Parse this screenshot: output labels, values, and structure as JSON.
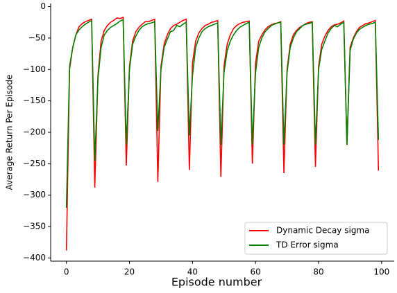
{
  "chart_data": {
    "type": "line",
    "xlabel": "Episode number",
    "ylabel": "Average Return Per Episode",
    "x": [
      0,
      1,
      2,
      3,
      4,
      5,
      6,
      7,
      8,
      9,
      10,
      11,
      12,
      13,
      14,
      15,
      16,
      17,
      18,
      19,
      20,
      21,
      22,
      23,
      24,
      25,
      26,
      27,
      28,
      29,
      30,
      31,
      32,
      33,
      34,
      35,
      36,
      37,
      38,
      39,
      40,
      41,
      42,
      43,
      44,
      45,
      46,
      47,
      48,
      49,
      50,
      51,
      52,
      53,
      54,
      55,
      56,
      57,
      58,
      59,
      60,
      61,
      62,
      63,
      64,
      65,
      66,
      67,
      68,
      69,
      70,
      71,
      72,
      73,
      74,
      75,
      76,
      77,
      78,
      79,
      80,
      81,
      82,
      83,
      84,
      85,
      86,
      87,
      88,
      89,
      90,
      91,
      92,
      93,
      94,
      95,
      96,
      97,
      98,
      99
    ],
    "series": [
      {
        "name": "Dynamic Decay sigma",
        "color": "#ff0000",
        "values": [
          -388,
          -100,
          -65,
          -45,
          -32,
          -27,
          -24,
          -22,
          -20,
          -288,
          -110,
          -55,
          -38,
          -30,
          -25,
          -22,
          -18,
          -19,
          -17,
          -253,
          -95,
          -55,
          -40,
          -33,
          -28,
          -24,
          -24,
          -22,
          -20,
          -279,
          -95,
          -60,
          -45,
          -35,
          -30,
          -28,
          -25,
          -22,
          -20,
          -260,
          -90,
          -55,
          -42,
          -35,
          -30,
          -28,
          -25,
          -24,
          -22,
          -271,
          -95,
          -60,
          -45,
          -35,
          -30,
          -27,
          -25,
          -24,
          -23,
          -250,
          -90,
          -55,
          -45,
          -37,
          -32,
          -29,
          -27,
          -26,
          -24,
          -265,
          -100,
          -60,
          -45,
          -38,
          -33,
          -30,
          -27,
          -25,
          -24,
          -255,
          -95,
          -60,
          -47,
          -38,
          -32,
          -29,
          -28,
          -26,
          -23,
          -220,
          -65,
          -50,
          -40,
          -33,
          -30,
          -27,
          -26,
          -24,
          -22,
          -261
        ]
      },
      {
        "name": "TD Error sigma",
        "color": "#008000",
        "values": [
          -320,
          -95,
          -65,
          -45,
          -37,
          -32,
          -28,
          -25,
          -22,
          -245,
          -115,
          -65,
          -45,
          -38,
          -33,
          -30,
          -27,
          -23,
          -21,
          -220,
          -100,
          -60,
          -47,
          -38,
          -32,
          -29,
          -27,
          -26,
          -24,
          -198,
          -100,
          -65,
          -52,
          -40,
          -38,
          -30,
          -32,
          -28,
          -25,
          -205,
          -110,
          -65,
          -50,
          -40,
          -35,
          -32,
          -30,
          -28,
          -26,
          -220,
          -105,
          -70,
          -55,
          -45,
          -38,
          -33,
          -30,
          -27,
          -25,
          -220,
          -105,
          -65,
          -50,
          -40,
          -35,
          -30,
          -28,
          -26,
          -25,
          -220,
          -105,
          -65,
          -50,
          -40,
          -35,
          -30,
          -28,
          -27,
          -25,
          -220,
          -100,
          -68,
          -55,
          -42,
          -35,
          -30,
          -32,
          -28,
          -25,
          -220,
          -70,
          -52,
          -42,
          -36,
          -33,
          -30,
          -28,
          -27,
          -25,
          -212
        ]
      }
    ],
    "xlim": [
      -5,
      104
    ],
    "xticks": [
      0,
      20,
      40,
      60,
      80,
      100
    ],
    "ylim": [
      -405,
      5
    ],
    "yticks": [
      {
        "value": 0,
        "label": "0"
      },
      {
        "value": -50,
        "label": "−50"
      },
      {
        "value": -100,
        "label": "−100"
      },
      {
        "value": -150,
        "label": "−150"
      },
      {
        "value": -200,
        "label": "−200"
      },
      {
        "value": -250,
        "label": "−250"
      },
      {
        "value": -300,
        "label": "−300"
      },
      {
        "value": -350,
        "label": "−350"
      },
      {
        "value": -400,
        "label": "−400"
      }
    ],
    "legend": "lower right"
  }
}
